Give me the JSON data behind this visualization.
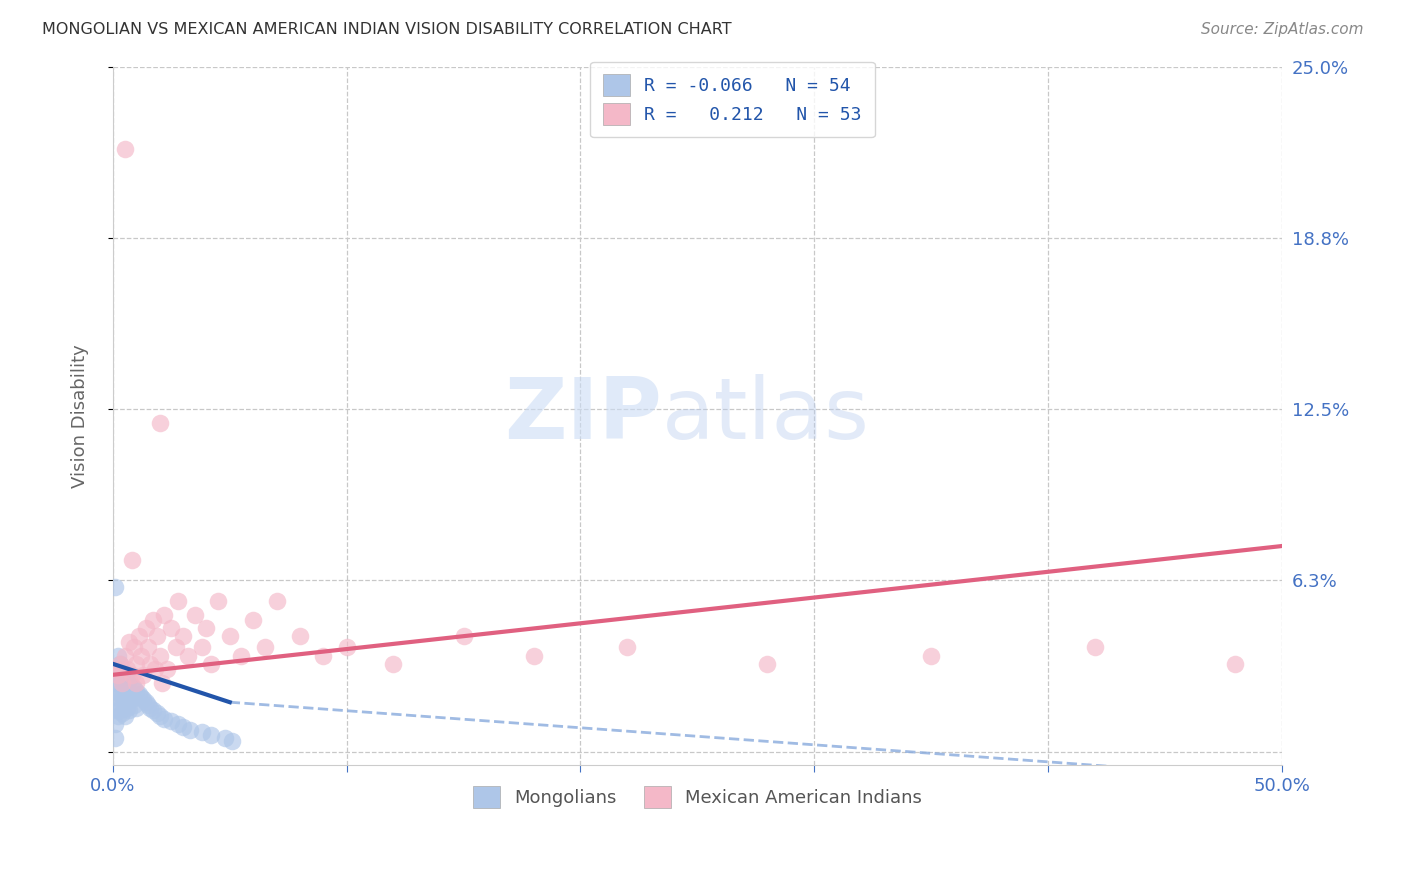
{
  "title": "MONGOLIAN VS MEXICAN AMERICAN INDIAN VISION DISABILITY CORRELATION CHART",
  "source": "Source: ZipAtlas.com",
  "ylabel": "Vision Disability",
  "xlim": [
    0.0,
    0.5
  ],
  "ylim": [
    -0.005,
    0.25
  ],
  "yticks": [
    0.0,
    0.0625,
    0.125,
    0.1875,
    0.25
  ],
  "ytick_labels": [
    "",
    "6.3%",
    "12.5%",
    "18.8%",
    "25.0%"
  ],
  "xtick_positions": [
    0.0,
    0.1,
    0.2,
    0.3,
    0.4,
    0.5
  ],
  "xtick_labels": [
    "0.0%",
    "",
    "",
    "",
    "",
    "50.0%"
  ],
  "legend_blue_label": "R = -0.066   N = 54",
  "legend_pink_label": "R =   0.212   N = 53",
  "mongolian_label": "Mongolians",
  "mexican_label": "Mexican American Indians",
  "blue_color": "#aec6e8",
  "pink_color": "#f4b8c8",
  "blue_line_solid_color": "#2255aa",
  "blue_line_dash_color": "#88aadd",
  "pink_line_color": "#e06080",
  "blue_scatter_x": [
    0.001,
    0.001,
    0.001,
    0.001,
    0.001,
    0.002,
    0.002,
    0.002,
    0.002,
    0.002,
    0.003,
    0.003,
    0.003,
    0.003,
    0.004,
    0.004,
    0.004,
    0.004,
    0.005,
    0.005,
    0.005,
    0.005,
    0.006,
    0.006,
    0.006,
    0.007,
    0.007,
    0.007,
    0.008,
    0.008,
    0.009,
    0.009,
    0.01,
    0.01,
    0.011,
    0.012,
    0.013,
    0.014,
    0.015,
    0.016,
    0.017,
    0.019,
    0.02,
    0.022,
    0.025,
    0.028,
    0.03,
    0.033,
    0.038,
    0.042,
    0.048,
    0.051,
    0.001,
    0.001
  ],
  "blue_scatter_y": [
    0.03,
    0.025,
    0.02,
    0.015,
    0.01,
    0.035,
    0.028,
    0.022,
    0.018,
    0.013,
    0.032,
    0.026,
    0.021,
    0.015,
    0.03,
    0.025,
    0.02,
    0.014,
    0.028,
    0.023,
    0.018,
    0.013,
    0.027,
    0.022,
    0.016,
    0.026,
    0.02,
    0.015,
    0.024,
    0.019,
    0.023,
    0.017,
    0.022,
    0.016,
    0.021,
    0.02,
    0.019,
    0.018,
    0.017,
    0.016,
    0.015,
    0.014,
    0.013,
    0.012,
    0.011,
    0.01,
    0.009,
    0.008,
    0.007,
    0.006,
    0.005,
    0.004,
    0.06,
    0.005
  ],
  "mexican_scatter_x": [
    0.001,
    0.002,
    0.003,
    0.004,
    0.005,
    0.006,
    0.007,
    0.008,
    0.009,
    0.01,
    0.01,
    0.011,
    0.012,
    0.013,
    0.014,
    0.015,
    0.016,
    0.017,
    0.018,
    0.019,
    0.02,
    0.021,
    0.022,
    0.023,
    0.025,
    0.027,
    0.028,
    0.03,
    0.032,
    0.035,
    0.038,
    0.04,
    0.042,
    0.045,
    0.05,
    0.055,
    0.06,
    0.065,
    0.07,
    0.08,
    0.09,
    0.1,
    0.12,
    0.15,
    0.18,
    0.22,
    0.28,
    0.35,
    0.42,
    0.48,
    0.02,
    0.005,
    0.008
  ],
  "mexican_scatter_y": [
    0.03,
    0.028,
    0.032,
    0.025,
    0.035,
    0.03,
    0.04,
    0.028,
    0.038,
    0.032,
    0.025,
    0.042,
    0.035,
    0.028,
    0.045,
    0.038,
    0.032,
    0.048,
    0.03,
    0.042,
    0.035,
    0.025,
    0.05,
    0.03,
    0.045,
    0.038,
    0.055,
    0.042,
    0.035,
    0.05,
    0.038,
    0.045,
    0.032,
    0.055,
    0.042,
    0.035,
    0.048,
    0.038,
    0.055,
    0.042,
    0.035,
    0.038,
    0.032,
    0.042,
    0.035,
    0.038,
    0.032,
    0.035,
    0.038,
    0.032,
    0.12,
    0.22,
    0.07
  ],
  "blue_trend_x0": 0.0,
  "blue_trend_x_solid_end": 0.05,
  "blue_trend_x1": 0.5,
  "blue_trend_y0": 0.032,
  "blue_trend_y_solid_end": 0.018,
  "blue_trend_y1": -0.01,
  "pink_trend_x0": 0.0,
  "pink_trend_x1": 0.5,
  "pink_trend_y0": 0.028,
  "pink_trend_y1": 0.075,
  "watermark_zip": "ZIP",
  "watermark_atlas": "atlas",
  "background_color": "#ffffff",
  "grid_color": "#c8c8c8"
}
